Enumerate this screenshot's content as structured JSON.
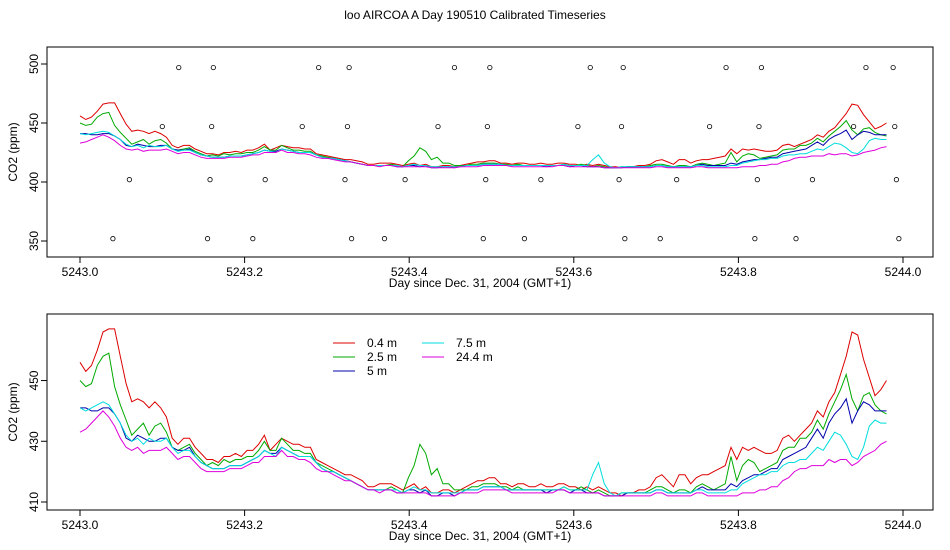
{
  "title": "loo AIRCOA A  Day 190510  Calibrated Timeseries",
  "series_meta": [
    {
      "name": "0.4 m",
      "color": "#dd0000"
    },
    {
      "name": "2.5 m",
      "color": "#00aa00"
    },
    {
      "name": "5 m",
      "color": "#0000aa"
    },
    {
      "name": "7.5 m",
      "color": "#00dddd"
    },
    {
      "name": "24.4 m",
      "color": "#dd00dd"
    }
  ],
  "chart_data": [
    {
      "type": "line",
      "xlabel": "Day since Dec. 31, 2004 (GMT+1)",
      "ylabel": "CO2 (ppm)",
      "xlim": [
        5243.0,
        5244.0
      ],
      "ylim": [
        350,
        500
      ],
      "xticks": [
        5243.0,
        5243.2,
        5243.4,
        5243.6,
        5243.8,
        5244.0
      ],
      "xtick_labels": [
        "5243.0",
        "5243.2",
        "5243.4",
        "5243.6",
        "5243.8",
        "5244.0"
      ],
      "yticks": [
        350,
        400,
        450,
        500
      ],
      "ytick_labels": [
        "350",
        "400",
        "450",
        "500"
      ],
      "series_source": "shared",
      "scatter": {
        "x": [
          5243.04,
          5243.06,
          5243.1,
          5243.12,
          5243.155,
          5243.158,
          5243.16,
          5243.162,
          5243.21,
          5243.225,
          5243.27,
          5243.29,
          5243.322,
          5243.325,
          5243.327,
          5243.33,
          5243.37,
          5243.395,
          5243.435,
          5243.455,
          5243.49,
          5243.493,
          5243.495,
          5243.498,
          5243.54,
          5243.56,
          5243.605,
          5243.62,
          5243.655,
          5243.658,
          5243.66,
          5243.662,
          5243.705,
          5243.725,
          5243.765,
          5243.785,
          5243.82,
          5243.823,
          5243.825,
          5243.828,
          5243.87,
          5243.89,
          5243.94,
          5243.955,
          5243.988,
          5243.99,
          5243.992,
          5243.995
        ],
        "y": [
          352,
          402,
          447,
          497,
          352,
          402,
          447,
          497,
          352,
          402,
          447,
          497,
          402,
          447,
          497,
          352,
          352,
          402,
          447,
          497,
          352,
          402,
          447,
          497,
          352,
          402,
          447,
          497,
          402,
          447,
          497,
          352,
          352,
          402,
          447,
          497,
          352,
          402,
          447,
          497,
          352,
          402,
          447,
          497,
          497,
          447,
          402,
          352
        ]
      }
    },
    {
      "type": "line",
      "xlabel": "Day since Dec. 31, 2004 (GMT+1)",
      "ylabel": "CO2 (ppm)",
      "xlim": [
        5243.0,
        5244.0
      ],
      "ylim": [
        410,
        465
      ],
      "xticks": [
        5243.0,
        5243.2,
        5243.4,
        5243.6,
        5243.8,
        5244.0
      ],
      "xtick_labels": [
        "5243.0",
        "5243.2",
        "5243.4",
        "5243.6",
        "5243.8",
        "5244.0"
      ],
      "yticks": [
        410,
        430,
        450
      ],
      "ytick_labels": [
        "410",
        "430",
        "450"
      ],
      "legend": "top-center",
      "x": [
        5243.0,
        5243.007,
        5243.014,
        5243.021,
        5243.028,
        5243.035,
        5243.042,
        5243.049,
        5243.056,
        5243.063,
        5243.07,
        5243.077,
        5243.084,
        5243.091,
        5243.098,
        5243.105,
        5243.112,
        5243.119,
        5243.126,
        5243.133,
        5243.14,
        5243.147,
        5243.154,
        5243.161,
        5243.168,
        5243.175,
        5243.182,
        5243.189,
        5243.196,
        5243.203,
        5243.21,
        5243.217,
        5243.224,
        5243.231,
        5243.238,
        5243.245,
        5243.252,
        5243.259,
        5243.266,
        5243.273,
        5243.28,
        5243.287,
        5243.294,
        5243.301,
        5243.308,
        5243.315,
        5243.322,
        5243.329,
        5243.336,
        5243.343,
        5243.35,
        5243.357,
        5243.364,
        5243.371,
        5243.378,
        5243.385,
        5243.392,
        5243.399,
        5243.406,
        5243.413,
        5243.42,
        5243.427,
        5243.434,
        5243.441,
        5243.448,
        5243.455,
        5243.462,
        5243.469,
        5243.476,
        5243.483,
        5243.49,
        5243.497,
        5243.504,
        5243.511,
        5243.518,
        5243.525,
        5243.532,
        5243.539,
        5243.546,
        5243.553,
        5243.56,
        5243.567,
        5243.574,
        5243.581,
        5243.588,
        5243.595,
        5243.602,
        5243.609,
        5243.616,
        5243.623,
        5243.63,
        5243.637,
        5243.644,
        5243.651,
        5243.658,
        5243.665,
        5243.672,
        5243.679,
        5243.686,
        5243.693,
        5243.7,
        5243.707,
        5243.714,
        5243.721,
        5243.728,
        5243.735,
        5243.742,
        5243.749,
        5243.756,
        5243.763,
        5243.77,
        5243.777,
        5243.784,
        5243.791,
        5243.798,
        5243.805,
        5243.812,
        5243.819,
        5243.826,
        5243.833,
        5243.84,
        5243.847,
        5243.854,
        5243.861,
        5243.868,
        5243.875,
        5243.882,
        5243.889,
        5243.896,
        5243.903,
        5243.91,
        5243.917,
        5243.924,
        5243.931,
        5243.938,
        5243.945,
        5243.952,
        5243.959,
        5243.966,
        5243.973,
        5243.98
      ],
      "series": [
        {
          "name": "0.4 m",
          "color": "#dd0000",
          "values": [
            456,
            453,
            455,
            460,
            466,
            467,
            467,
            458,
            449,
            443,
            444,
            443,
            441,
            443,
            441,
            438,
            431,
            429,
            431,
            431,
            428,
            426,
            424,
            424,
            423,
            425,
            425,
            426,
            425,
            427,
            427,
            429,
            432,
            427,
            429,
            431,
            430,
            429,
            429,
            428,
            428,
            424,
            423,
            422,
            421,
            420,
            419,
            419,
            418,
            417,
            415,
            415,
            416,
            416,
            416,
            415,
            414,
            415,
            416,
            414,
            415,
            413,
            413,
            414,
            414,
            413,
            414,
            415,
            416,
            417,
            417,
            418,
            418,
            416,
            416,
            415,
            416,
            416,
            415,
            415,
            416,
            415,
            415,
            416,
            416,
            415,
            415,
            414,
            415,
            414,
            415,
            414,
            413,
            413,
            412,
            413,
            413,
            414,
            414,
            415,
            418,
            419,
            417,
            415,
            419,
            419,
            416,
            418,
            419,
            419,
            420,
            421,
            422,
            428,
            424,
            428,
            427,
            428,
            427,
            426,
            426,
            427,
            431,
            432,
            430,
            432,
            434,
            436,
            440,
            438,
            443,
            446,
            452,
            458,
            466,
            465,
            457,
            451,
            445,
            447,
            450
          ]
        },
        {
          "name": "2.5 m",
          "color": "#00aa00",
          "values": [
            450,
            448,
            449,
            455,
            458,
            459,
            448,
            442,
            437,
            432,
            434,
            436,
            432,
            435,
            436,
            433,
            428,
            427,
            428,
            429,
            426,
            424,
            422,
            423,
            422,
            424,
            423,
            424,
            424,
            425,
            425,
            427,
            430,
            427,
            427,
            431,
            429,
            427,
            427,
            426,
            426,
            423,
            422,
            421,
            420,
            419,
            418,
            417,
            416,
            415,
            414,
            414,
            414,
            414,
            415,
            414,
            413,
            418,
            422,
            429,
            426,
            419,
            421,
            416,
            416,
            414,
            414,
            414,
            415,
            415,
            416,
            416,
            416,
            415,
            415,
            414,
            415,
            414,
            414,
            414,
            414,
            414,
            414,
            414,
            415,
            414,
            414,
            415,
            414,
            413,
            414,
            413,
            412,
            412,
            413,
            413,
            413,
            413,
            413,
            414,
            415,
            415,
            414,
            413,
            414,
            414,
            413,
            415,
            416,
            415,
            414,
            415,
            416,
            425,
            417,
            422,
            424,
            423,
            420,
            421,
            422,
            423,
            427,
            428,
            428,
            431,
            431,
            433,
            437,
            434,
            439,
            443,
            447,
            452,
            444,
            440,
            445,
            446,
            442,
            440,
            439
          ]
        },
        {
          "name": "5 m",
          "color": "#0000aa",
          "values": [
            441,
            441,
            440,
            440,
            441,
            441,
            439,
            436,
            431,
            430,
            432,
            431,
            430,
            430,
            431,
            431,
            428,
            427,
            427,
            428,
            425,
            423,
            422,
            421,
            421,
            421,
            422,
            422,
            422,
            423,
            424,
            425,
            427,
            426,
            426,
            428,
            427,
            426,
            425,
            425,
            425,
            423,
            421,
            420,
            420,
            419,
            418,
            417,
            416,
            415,
            414,
            414,
            414,
            414,
            414,
            413,
            413,
            414,
            414,
            413,
            414,
            412,
            412,
            413,
            413,
            412,
            413,
            414,
            414,
            414,
            415,
            415,
            415,
            415,
            414,
            414,
            414,
            414,
            414,
            414,
            414,
            413,
            414,
            414,
            414,
            413,
            414,
            414,
            413,
            413,
            413,
            412,
            412,
            412,
            412,
            413,
            413,
            413,
            413,
            413,
            414,
            414,
            413,
            413,
            413,
            413,
            413,
            414,
            415,
            414,
            414,
            414,
            414,
            416,
            415,
            417,
            418,
            419,
            419,
            420,
            421,
            421,
            424,
            425,
            426,
            427,
            428,
            431,
            434,
            431,
            436,
            439,
            441,
            444,
            436,
            440,
            443,
            442,
            440,
            440,
            440
          ]
        },
        {
          "name": "7.5 m",
          "color": "#00dddd",
          "values": [
            441,
            440,
            441,
            442,
            443,
            442,
            439,
            436,
            432,
            430,
            431,
            429,
            431,
            430,
            430,
            431,
            428,
            426,
            427,
            427,
            425,
            423,
            422,
            421,
            421,
            421,
            422,
            422,
            422,
            423,
            424,
            425,
            427,
            426,
            425,
            428,
            427,
            426,
            425,
            425,
            425,
            423,
            421,
            420,
            420,
            419,
            418,
            417,
            416,
            415,
            414,
            414,
            414,
            414,
            414,
            414,
            413,
            414,
            415,
            414,
            414,
            413,
            413,
            413,
            413,
            413,
            413,
            414,
            414,
            414,
            415,
            415,
            415,
            415,
            414,
            414,
            414,
            414,
            414,
            414,
            414,
            414,
            414,
            414,
            415,
            414,
            414,
            414,
            414,
            419,
            423,
            416,
            413,
            412,
            413,
            413,
            413,
            413,
            413,
            413,
            414,
            414,
            413,
            413,
            413,
            413,
            413,
            414,
            414,
            413,
            413,
            413,
            413,
            414,
            414,
            416,
            417,
            418,
            419,
            419,
            420,
            420,
            422,
            423,
            423,
            424,
            424,
            426,
            428,
            427,
            430,
            433,
            432,
            429,
            425,
            424,
            428,
            435,
            437,
            436,
            436
          ]
        },
        {
          "name": "24.4 m",
          "color": "#dd00dd",
          "values": [
            433,
            434,
            436,
            438,
            440,
            438,
            435,
            431,
            428,
            427,
            428,
            426,
            427,
            427,
            427,
            428,
            426,
            424,
            425,
            425,
            423,
            421,
            420,
            420,
            420,
            420,
            421,
            421,
            421,
            422,
            423,
            423,
            425,
            425,
            425,
            427,
            425,
            425,
            424,
            424,
            423,
            421,
            420,
            420,
            419,
            418,
            417,
            417,
            416,
            415,
            414,
            414,
            413,
            414,
            414,
            413,
            413,
            413,
            413,
            413,
            413,
            412,
            412,
            412,
            412,
            412,
            413,
            413,
            413,
            413,
            414,
            414,
            414,
            414,
            414,
            413,
            413,
            413,
            413,
            413,
            413,
            413,
            413,
            414,
            414,
            413,
            413,
            413,
            413,
            413,
            413,
            412,
            412,
            412,
            412,
            412,
            412,
            412,
            412,
            412,
            413,
            413,
            412,
            412,
            412,
            412,
            412,
            413,
            413,
            412,
            412,
            412,
            412,
            412,
            412,
            413,
            413,
            413,
            414,
            414,
            415,
            415,
            417,
            418,
            420,
            421,
            421,
            422,
            422,
            422,
            424,
            423,
            424,
            424,
            422,
            423,
            425,
            426,
            427,
            429,
            430
          ]
        }
      ]
    }
  ]
}
